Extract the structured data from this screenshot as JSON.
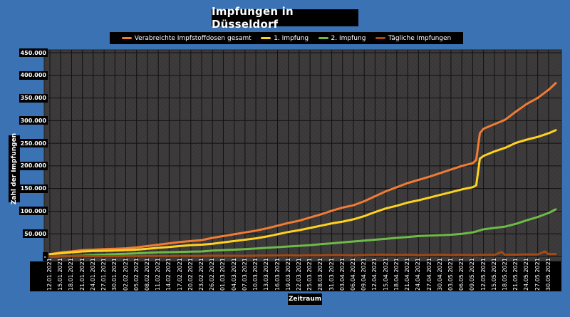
{
  "chart_data": {
    "type": "line",
    "title": "Impfungen in Düsseldorf",
    "xlabel": "Zeitraum",
    "ylabel": "Zahl der Impfungen",
    "ylim": [
      0,
      450000
    ],
    "yticks": [
      {
        "value": 0,
        "label": "-"
      },
      {
        "value": 50000,
        "label": "50.000"
      },
      {
        "value": 100000,
        "label": "100.000"
      },
      {
        "value": 150000,
        "label": "150.000"
      },
      {
        "value": 200000,
        "label": "200.000"
      },
      {
        "value": 250000,
        "label": "250.000"
      },
      {
        "value": 300000,
        "label": "300.000"
      },
      {
        "value": 350000,
        "label": "350.000"
      },
      {
        "value": 400000,
        "label": "400.000"
      },
      {
        "value": 450000,
        "label": "450.000"
      }
    ],
    "xticks": [
      "12.01.2021",
      "15.01.2021",
      "18.01.2021",
      "21.01.2021",
      "24.01.2021",
      "27.01.2021",
      "30.01.2021",
      "02.02.2021",
      "05.02.2021",
      "08.02.2021",
      "11.02.2021",
      "14.02.2021",
      "17.02.2021",
      "20.02.2021",
      "23.02.2021",
      "26.02.2021",
      "01.03.2021",
      "04.03.2021",
      "07.03.2021",
      "10.03.2021",
      "13.03.2021",
      "16.03.2021",
      "19.03.2021",
      "22.03.2021",
      "25.03.2021",
      "28.03.2021",
      "31.03.2021",
      "03.04.2021",
      "06.04.2021",
      "09.04.2021",
      "12.04.2021",
      "15.04.2021",
      "18.04.2021",
      "21.04.2021",
      "24.04.2021",
      "27.04.2021",
      "30.04.2021",
      "03.05.2021",
      "06.05.2021",
      "09.05.2021",
      "12.05.2021",
      "15.05.2021",
      "18.05.2021",
      "21.05.2021",
      "24.05.2021",
      "27.05.2021",
      "30.05.2021"
    ],
    "grid": true,
    "legend_position": "top",
    "series": [
      {
        "name": "Verabreichte Impfstoffdosen gesamt",
        "color": "#f07c35",
        "points": [
          [
            "12.01.2021",
            5000
          ],
          [
            "15.01.2021",
            9000
          ],
          [
            "18.01.2021",
            11000
          ],
          [
            "21.01.2021",
            14000
          ],
          [
            "24.01.2021",
            15000
          ],
          [
            "27.01.2021",
            16000
          ],
          [
            "30.01.2021",
            17000
          ],
          [
            "02.02.2021",
            18000
          ],
          [
            "05.02.2021",
            20000
          ],
          [
            "08.02.2021",
            23000
          ],
          [
            "11.02.2021",
            26000
          ],
          [
            "14.02.2021",
            29000
          ],
          [
            "17.02.2021",
            32000
          ],
          [
            "20.02.2021",
            34000
          ],
          [
            "23.02.2021",
            36000
          ],
          [
            "26.02.2021",
            41000
          ],
          [
            "01.03.2021",
            45000
          ],
          [
            "04.03.2021",
            49000
          ],
          [
            "07.03.2021",
            53000
          ],
          [
            "10.03.2021",
            57000
          ],
          [
            "13.03.2021",
            62000
          ],
          [
            "16.03.2021",
            68000
          ],
          [
            "19.03.2021",
            74000
          ],
          [
            "22.03.2021",
            79000
          ],
          [
            "25.03.2021",
            86000
          ],
          [
            "28.03.2021",
            93000
          ],
          [
            "31.03.2021",
            101000
          ],
          [
            "03.04.2021",
            108000
          ],
          [
            "06.04.2021",
            113000
          ],
          [
            "09.04.2021",
            122000
          ],
          [
            "12.04.2021",
            133000
          ],
          [
            "15.04.2021",
            144000
          ],
          [
            "18.04.2021",
            153000
          ],
          [
            "21.04.2021",
            162000
          ],
          [
            "24.04.2021",
            169000
          ],
          [
            "27.04.2021",
            176000
          ],
          [
            "30.04.2021",
            184000
          ],
          [
            "03.05.2021",
            192000
          ],
          [
            "06.05.2021",
            200000
          ],
          [
            "09.05.2021",
            206000
          ],
          [
            "10.05.2021",
            213000
          ],
          [
            "11.05.2021",
            272000
          ],
          [
            "12.05.2021",
            282000
          ],
          [
            "15.05.2021",
            292000
          ],
          [
            "18.05.2021",
            302000
          ],
          [
            "21.05.2021",
            320000
          ],
          [
            "24.05.2021",
            337000
          ],
          [
            "27.05.2021",
            350000
          ],
          [
            "30.05.2021",
            368000
          ],
          [
            "01.06.2021",
            383000
          ]
        ]
      },
      {
        "name": "1. Impfung",
        "color": "#ffd21f",
        "points": [
          [
            "12.01.2021",
            5000
          ],
          [
            "15.01.2021",
            7000
          ],
          [
            "18.01.2021",
            9000
          ],
          [
            "21.01.2021",
            11000
          ],
          [
            "24.01.2021",
            12000
          ],
          [
            "27.01.2021",
            12500
          ],
          [
            "30.01.2021",
            13000
          ],
          [
            "02.02.2021",
            14000
          ],
          [
            "05.02.2021",
            15000
          ],
          [
            "08.02.2021",
            17000
          ],
          [
            "11.02.2021",
            19000
          ],
          [
            "14.02.2021",
            21000
          ],
          [
            "17.02.2021",
            23000
          ],
          [
            "20.02.2021",
            25000
          ],
          [
            "23.02.2021",
            26000
          ],
          [
            "26.02.2021",
            28000
          ],
          [
            "01.03.2021",
            31000
          ],
          [
            "04.03.2021",
            34000
          ],
          [
            "07.03.2021",
            37000
          ],
          [
            "10.03.2021",
            40000
          ],
          [
            "13.03.2021",
            44000
          ],
          [
            "16.03.2021",
            49000
          ],
          [
            "19.03.2021",
            54000
          ],
          [
            "22.03.2021",
            58000
          ],
          [
            "25.03.2021",
            63000
          ],
          [
            "28.03.2021",
            68000
          ],
          [
            "31.03.2021",
            73000
          ],
          [
            "03.04.2021",
            77000
          ],
          [
            "06.04.2021",
            82000
          ],
          [
            "09.04.2021",
            89000
          ],
          [
            "12.04.2021",
            98000
          ],
          [
            "15.04.2021",
            106000
          ],
          [
            "18.04.2021",
            112000
          ],
          [
            "21.04.2021",
            119000
          ],
          [
            "24.04.2021",
            124000
          ],
          [
            "27.04.2021",
            130000
          ],
          [
            "30.04.2021",
            136000
          ],
          [
            "03.05.2021",
            142000
          ],
          [
            "06.05.2021",
            148000
          ],
          [
            "09.05.2021",
            153000
          ],
          [
            "10.05.2021",
            157000
          ],
          [
            "11.05.2021",
            216000
          ],
          [
            "12.05.2021",
            222000
          ],
          [
            "15.05.2021",
            232000
          ],
          [
            "18.05.2021",
            240000
          ],
          [
            "21.05.2021",
            251000
          ],
          [
            "24.05.2021",
            258000
          ],
          [
            "27.05.2021",
            264000
          ],
          [
            "30.05.2021",
            272000
          ],
          [
            "01.06.2021",
            279000
          ]
        ]
      },
      {
        "name": "2. Impfung",
        "color": "#6dbb47",
        "points": [
          [
            "12.01.2021",
            0
          ],
          [
            "15.01.2021",
            500
          ],
          [
            "18.01.2021",
            1000
          ],
          [
            "21.01.2021",
            2000
          ],
          [
            "24.01.2021",
            3000
          ],
          [
            "27.01.2021",
            4000
          ],
          [
            "30.01.2021",
            5000
          ],
          [
            "02.02.2021",
            6000
          ],
          [
            "05.02.2021",
            7000
          ],
          [
            "08.02.2021",
            8000
          ],
          [
            "11.02.2021",
            9000
          ],
          [
            "14.02.2021",
            9500
          ],
          [
            "17.02.2021",
            10000
          ],
          [
            "20.02.2021",
            10500
          ],
          [
            "23.02.2021",
            11000
          ],
          [
            "26.02.2021",
            13000
          ],
          [
            "01.03.2021",
            14000
          ],
          [
            "04.03.2021",
            15000
          ],
          [
            "07.03.2021",
            16000
          ],
          [
            "10.03.2021",
            17500
          ],
          [
            "13.03.2021",
            19000
          ],
          [
            "16.03.2021",
            20500
          ],
          [
            "19.03.2021",
            22000
          ],
          [
            "22.03.2021",
            23500
          ],
          [
            "25.03.2021",
            25000
          ],
          [
            "28.03.2021",
            27000
          ],
          [
            "31.03.2021",
            29000
          ],
          [
            "03.04.2021",
            31000
          ],
          [
            "06.04.2021",
            33000
          ],
          [
            "09.04.2021",
            35000
          ],
          [
            "12.04.2021",
            37000
          ],
          [
            "15.04.2021",
            39000
          ],
          [
            "18.04.2021",
            41000
          ],
          [
            "21.04.2021",
            43000
          ],
          [
            "24.04.2021",
            45000
          ],
          [
            "27.04.2021",
            46000
          ],
          [
            "30.04.2021",
            47000
          ],
          [
            "03.05.2021",
            48000
          ],
          [
            "06.05.2021",
            50000
          ],
          [
            "09.05.2021",
            53000
          ],
          [
            "12.05.2021",
            60000
          ],
          [
            "15.05.2021",
            63000
          ],
          [
            "18.05.2021",
            66000
          ],
          [
            "21.05.2021",
            72000
          ],
          [
            "24.05.2021",
            80000
          ],
          [
            "27.05.2021",
            87000
          ],
          [
            "30.05.2021",
            96000
          ],
          [
            "01.06.2021",
            104000
          ]
        ]
      },
      {
        "name": "Tägliche Impfungen",
        "color": "#a34a16",
        "points": [
          [
            "12.01.2021",
            500
          ],
          [
            "15.01.2021",
            1200
          ],
          [
            "18.01.2021",
            900
          ],
          [
            "21.01.2021",
            1100
          ],
          [
            "24.01.2021",
            600
          ],
          [
            "27.01.2021",
            800
          ],
          [
            "30.01.2021",
            700
          ],
          [
            "02.02.2021",
            900
          ],
          [
            "05.02.2021",
            1000
          ],
          [
            "08.02.2021",
            1300
          ],
          [
            "11.02.2021",
            1200
          ],
          [
            "14.02.2021",
            900
          ],
          [
            "17.02.2021",
            1400
          ],
          [
            "20.02.2021",
            1100
          ],
          [
            "23.02.2021",
            1200
          ],
          [
            "26.02.2021",
            1800
          ],
          [
            "01.03.2021",
            1500
          ],
          [
            "04.03.2021",
            1600
          ],
          [
            "07.03.2021",
            1400
          ],
          [
            "10.03.2021",
            1700
          ],
          [
            "13.03.2021",
            1900
          ],
          [
            "16.03.2021",
            2200
          ],
          [
            "19.03.2021",
            2400
          ],
          [
            "22.03.2021",
            2000
          ],
          [
            "25.03.2021",
            2500
          ],
          [
            "28.03.2021",
            2300
          ],
          [
            "31.03.2021",
            2800
          ],
          [
            "03.04.2021",
            2600
          ],
          [
            "06.04.2021",
            2200
          ],
          [
            "09.04.2021",
            3000
          ],
          [
            "12.04.2021",
            3500
          ],
          [
            "15.04.2021",
            3800
          ],
          [
            "18.04.2021",
            3200
          ],
          [
            "21.04.2021",
            3600
          ],
          [
            "24.04.2021",
            2900
          ],
          [
            "27.04.2021",
            3100
          ],
          [
            "30.04.2021",
            3400
          ],
          [
            "03.05.2021",
            3000
          ],
          [
            "06.05.2021",
            3300
          ],
          [
            "09.05.2021",
            2600
          ],
          [
            "12.05.2021",
            3600
          ],
          [
            "15.05.2021",
            3200
          ],
          [
            "17.05.2021",
            10000
          ],
          [
            "18.05.2021",
            3500
          ],
          [
            "21.05.2021",
            4000
          ],
          [
            "24.05.2021",
            4500
          ],
          [
            "27.05.2021",
            4200
          ],
          [
            "29.05.2021",
            11000
          ],
          [
            "30.05.2021",
            5000
          ],
          [
            "01.06.2021",
            5500
          ]
        ]
      }
    ]
  }
}
